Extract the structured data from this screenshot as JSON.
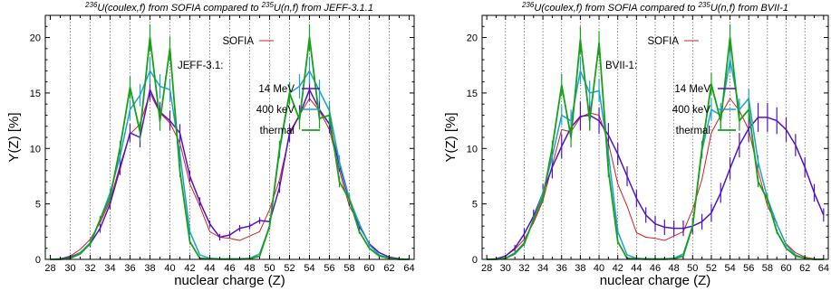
{
  "chart_data": [
    {
      "type": "line",
      "title_sup1": "236",
      "title_part1": "U(coulex,f) from SOFIA compared to ",
      "title_sup2": "235",
      "title_part2": "U(n,f) from JEFF-3.1.1",
      "xlabel": "nuclear charge (Z)",
      "ylabel": "Y(Z) [%]",
      "xlim": [
        27.5,
        64.5
      ],
      "ylim": [
        0,
        22
      ],
      "xticks": [
        28,
        30,
        32,
        34,
        36,
        38,
        40,
        42,
        44,
        46,
        48,
        50,
        52,
        54,
        56,
        58,
        60,
        62,
        64
      ],
      "yticks": [
        0,
        5,
        10,
        15,
        20
      ],
      "vgrid": [
        30,
        32,
        34,
        36,
        38,
        40,
        42,
        44,
        46,
        48,
        50,
        52,
        54,
        56,
        58,
        60,
        62
      ],
      "legend_group_label": "JEFF-3.1:",
      "x": [
        28,
        29,
        30,
        31,
        32,
        33,
        34,
        35,
        36,
        37,
        38,
        39,
        40,
        41,
        42,
        43,
        44,
        45,
        46,
        47,
        48,
        49,
        50,
        51,
        52,
        53,
        54,
        55,
        56,
        57,
        58,
        59,
        60,
        61,
        62,
        63,
        64
      ],
      "series": [
        {
          "name": "SOFIA",
          "color": "#d42020",
          "width": 1.0,
          "values": [
            0,
            0.05,
            0.3,
            0.9,
            1.8,
            3.3,
            5.3,
            8.5,
            11.3,
            12.2,
            15.0,
            13.2,
            12.3,
            10.5,
            6.8,
            4.8,
            2.5,
            2.0,
            1.9,
            1.7,
            2.1,
            2.5,
            4.5,
            7.2,
            11.2,
            13.0,
            14.5,
            13.4,
            11.7,
            8.0,
            4.8,
            3.2,
            1.4,
            0.6,
            0.2,
            0.05,
            0
          ],
          "errors": []
        },
        {
          "name": "14 MeV",
          "color": "#5014c8",
          "width": 1.5,
          "values": [
            0,
            0.05,
            0.2,
            0.6,
            1.4,
            2.8,
            5.0,
            8.2,
            11.4,
            11.0,
            15.3,
            13.3,
            12.5,
            11.4,
            7.5,
            5.2,
            3.2,
            2.0,
            2.2,
            2.8,
            3.0,
            3.5,
            3.4,
            6.5,
            11.4,
            13.0,
            15.3,
            13.5,
            12.2,
            8.5,
            5.3,
            3.0,
            1.4,
            0.6,
            0.2,
            0.05,
            0
          ],
          "errors": [
            0,
            0,
            0,
            0,
            0.3,
            0.4,
            0.5,
            0.6,
            0.8,
            0.9,
            1.0,
            0.9,
            0.9,
            0.8,
            0.5,
            0.4,
            0.3,
            0.3,
            0.3,
            0.3,
            0.3,
            0.3,
            0.3,
            0.5,
            0.8,
            0.9,
            1.0,
            0.9,
            0.8,
            0.6,
            0.5,
            0.4,
            0.2,
            0,
            0,
            0,
            0
          ]
        },
        {
          "name": "400 keV",
          "color": "#1ea0d2",
          "width": 1.5,
          "values": [
            0,
            0,
            0.1,
            0.6,
            1.5,
            3.6,
            6.0,
            9.3,
            13.5,
            14.8,
            17.0,
            15.6,
            15.3,
            9.5,
            2.5,
            0.4,
            0.1,
            0.05,
            0.05,
            0.05,
            0.1,
            0.5,
            3.0,
            9.8,
            15.0,
            15.6,
            17.0,
            15.2,
            13.4,
            8.8,
            5.5,
            3.2,
            1.3,
            0.4,
            0.1,
            0,
            0
          ],
          "errors": [
            0,
            0,
            0,
            0,
            0.2,
            0.3,
            0.4,
            0.6,
            0.9,
            1.0,
            1.2,
            1.1,
            1.0,
            0.7,
            0.3,
            0,
            0,
            0,
            0,
            0,
            0,
            0,
            0.3,
            0.7,
            1.0,
            1.1,
            1.2,
            1.0,
            0.9,
            0.6,
            0.4,
            0.2,
            0,
            0,
            0,
            0,
            0
          ]
        },
        {
          "name": "thermal",
          "color": "#18a018",
          "width": 1.8,
          "values": [
            0,
            0,
            0.1,
            0.5,
            1.4,
            3.6,
            5.6,
            10.1,
            15.5,
            11.5,
            20.0,
            12.5,
            19.0,
            8.0,
            1.6,
            0.1,
            0.05,
            0.02,
            0.02,
            0.02,
            0.05,
            0.3,
            3.0,
            10.0,
            15.0,
            12.6,
            20.0,
            12.7,
            13.0,
            7.0,
            5.4,
            2.5,
            1.0,
            0.3,
            0.1,
            0,
            0
          ],
          "errors": [
            0,
            0,
            0,
            0,
            0.2,
            0.3,
            0.4,
            0.6,
            1.0,
            0.9,
            1.2,
            0.9,
            1.1,
            0.6,
            0.2,
            0,
            0,
            0,
            0,
            0,
            0,
            0,
            0.3,
            0.7,
            1.0,
            0.9,
            1.2,
            0.9,
            0.9,
            0.5,
            0.4,
            0.2,
            0,
            0,
            0,
            0,
            0
          ]
        }
      ]
    },
    {
      "type": "line",
      "title_sup1": "236",
      "title_part1": "U(coulex,f) from SOFIA compared to ",
      "title_sup2": "235",
      "title_part2": "U(n,f) from BVII-1",
      "xlabel": "nuclear charge (Z)",
      "ylabel": "Y(Z) [%]",
      "xlim": [
        27.5,
        64.5
      ],
      "ylim": [
        0,
        22
      ],
      "xticks": [
        28,
        30,
        32,
        34,
        36,
        38,
        40,
        42,
        44,
        46,
        48,
        50,
        52,
        54,
        56,
        58,
        60,
        62,
        64
      ],
      "yticks": [
        0,
        5,
        10,
        15,
        20
      ],
      "vgrid": [
        30,
        32,
        34,
        36,
        38,
        40,
        42,
        44,
        46,
        48,
        50,
        52,
        54,
        56,
        58,
        60,
        62
      ],
      "legend_group_label": "BVII-1:",
      "x": [
        28,
        29,
        30,
        31,
        32,
        33,
        34,
        35,
        36,
        37,
        38,
        39,
        40,
        41,
        42,
        43,
        44,
        45,
        46,
        47,
        48,
        49,
        50,
        51,
        52,
        53,
        54,
        55,
        56,
        57,
        58,
        59,
        60,
        61,
        62,
        63,
        64
      ],
      "series": [
        {
          "name": "SOFIA",
          "color": "#d42020",
          "width": 1.0,
          "values": [
            0,
            0.05,
            0.3,
            0.9,
            1.8,
            3.3,
            5.3,
            8.5,
            11.7,
            11.5,
            12.8,
            13.2,
            13.0,
            10.5,
            6.8,
            4.8,
            2.4,
            2.0,
            1.9,
            1.7,
            2.1,
            2.5,
            4.5,
            7.2,
            11.4,
            13.0,
            14.5,
            13.4,
            11.7,
            8.0,
            4.8,
            3.2,
            1.4,
            0.6,
            0.2,
            0.05,
            0
          ],
          "errors": []
        },
        {
          "name": "14 MeV",
          "color": "#5014c8",
          "width": 1.5,
          "values": [
            0,
            0.05,
            0.3,
            1.0,
            2.3,
            3.9,
            6.0,
            8.3,
            10.2,
            11.9,
            12.9,
            13.0,
            12.5,
            11.2,
            9.5,
            7.5,
            5.5,
            4.0,
            3.2,
            2.9,
            2.8,
            2.8,
            3.0,
            3.4,
            4.2,
            6.0,
            8.2,
            10.3,
            11.8,
            12.8,
            12.8,
            12.5,
            11.7,
            10.3,
            8.3,
            6.0,
            4.0
          ],
          "errors": [
            0,
            0,
            0,
            0.3,
            0.5,
            0.6,
            0.8,
            1.0,
            1.1,
            1.2,
            1.3,
            1.3,
            1.2,
            1.1,
            1.0,
            0.9,
            0.8,
            0.7,
            0.7,
            0.7,
            0.7,
            0.7,
            0.7,
            0.7,
            0.8,
            0.9,
            1.0,
            1.1,
            1.2,
            1.3,
            1.3,
            1.2,
            1.1,
            1.0,
            0.9,
            0.8,
            0.6
          ]
        },
        {
          "name": "400 keV",
          "color": "#1ea0d2",
          "width": 1.5,
          "values": [
            0,
            0,
            0.1,
            0.6,
            1.5,
            3.6,
            6.0,
            9.3,
            13.0,
            12.5,
            17.0,
            15.0,
            15.2,
            9.5,
            2.5,
            0.4,
            0.1,
            0.05,
            0.05,
            0.05,
            0.1,
            0.5,
            3.0,
            9.8,
            13.5,
            13.0,
            18.0,
            13.5,
            14.5,
            8.8,
            5.5,
            3.2,
            1.3,
            0.4,
            0.1,
            0,
            0
          ],
          "errors": [
            0,
            0,
            0,
            0,
            0.2,
            0.3,
            0.4,
            0.6,
            0.9,
            1.0,
            1.2,
            1.1,
            1.0,
            0.7,
            0.3,
            0,
            0,
            0,
            0,
            0,
            0,
            0,
            0.3,
            0.7,
            1.0,
            1.1,
            1.2,
            1.0,
            0.9,
            0.6,
            0.4,
            0.2,
            0,
            0,
            0,
            0,
            0
          ]
        },
        {
          "name": "thermal",
          "color": "#18a018",
          "width": 1.8,
          "values": [
            0,
            0,
            0.1,
            0.5,
            1.4,
            3.6,
            5.6,
            10.1,
            15.7,
            11.0,
            19.8,
            12.5,
            19.5,
            8.0,
            1.6,
            0.1,
            0.05,
            0.02,
            0.02,
            0.02,
            0.05,
            0.3,
            3.0,
            10.0,
            15.8,
            12.5,
            20.0,
            12.5,
            13.5,
            7.0,
            5.4,
            2.5,
            1.0,
            0.3,
            0.1,
            0,
            0
          ],
          "errors": [
            0,
            0,
            0,
            0,
            0.2,
            0.3,
            0.4,
            0.6,
            1.0,
            0.9,
            1.2,
            0.9,
            1.1,
            0.6,
            0.2,
            0,
            0,
            0,
            0,
            0,
            0,
            0,
            0.3,
            0.7,
            1.0,
            0.9,
            1.2,
            0.9,
            0.9,
            0.5,
            0.4,
            0.2,
            0,
            0,
            0,
            0,
            0
          ]
        }
      ]
    }
  ]
}
